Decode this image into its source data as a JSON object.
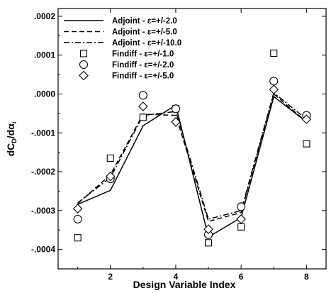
{
  "chart_data": {
    "type": "line",
    "xlabel": "Design Variable Index",
    "ylabel": "dC_D/dα_i",
    "xlim": [
      0.4,
      8.6
    ],
    "ylim": [
      -0.00045,
      0.00022
    ],
    "x_ticks": [
      2,
      4,
      6,
      8
    ],
    "x_tick_labels": [
      "2",
      "4",
      "6",
      "8"
    ],
    "y_ticks": [
      0.0002,
      0.0001,
      0.0,
      -0.0001,
      -0.0002,
      -0.0003,
      -0.0004
    ],
    "y_tick_labels": [
      ".0002",
      ".0001",
      ".0000",
      "-.0001",
      "-.0002",
      "-.0003",
      "-.0004"
    ],
    "grid": false,
    "legend_position": "top-left",
    "x": [
      1,
      2,
      3,
      4,
      5,
      6,
      7,
      8
    ],
    "series": [
      {
        "name": "Adjoint - ε=+/-2.0",
        "style": "solid",
        "values": [
          -0.000284,
          -0.000248,
          -8.17e-05,
          -2.83e-05,
          -0.000368,
          -0.000318,
          -6.7e-06,
          -7.17e-05
        ]
      },
      {
        "name": "Adjoint - ε=+/-5.0",
        "style": "dashed",
        "values": [
          -0.000282,
          -0.000208,
          -5.17e-05,
          -5.5e-05,
          -0.000328,
          -0.000305,
          0.0,
          -7.17e-05
        ]
      },
      {
        "name": "Adjoint - ε=+/-10.0",
        "style": "dashdot",
        "values": [
          -0.00028,
          -0.000215,
          -5.5e-05,
          -4.5e-05,
          -0.000322,
          -0.0003,
          3.3e-06,
          -6.5e-05
        ]
      },
      {
        "name": "Findiff - ε=+/-1.0",
        "marker": "square",
        "values": [
          -0.00037,
          -0.000165,
          -6e-05,
          -3.8e-05,
          -0.000383,
          -0.000342,
          0.000105,
          -0.000128
        ]
      },
      {
        "name": "Findiff - ε=+/-2.0",
        "marker": "circle",
        "values": [
          -0.000322,
          -0.000218,
          -3.3e-06,
          -3.8e-05,
          -0.000362,
          -0.00029,
          3.33e-05,
          -5.5e-05
        ]
      },
      {
        "name": "Findiff - ε=+/-5.0",
        "marker": "diamond",
        "values": [
          -0.000295,
          -0.000212,
          -3.2e-05,
          -7.2e-05,
          -0.000348,
          -0.000322,
          1.17e-05,
          -6.5e-05
        ]
      }
    ]
  }
}
